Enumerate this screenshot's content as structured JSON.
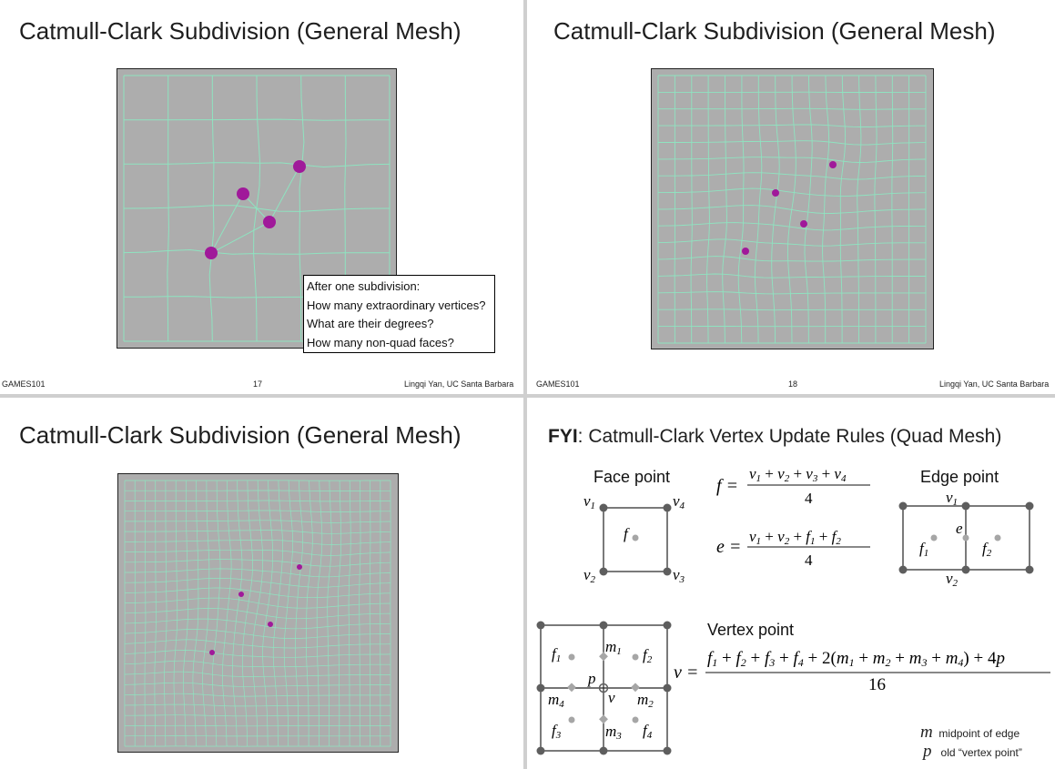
{
  "slides": [
    {
      "title": "Catmull-Clark Subdivision (General Mesh)",
      "footer": {
        "left": "GAMES101",
        "center": "17",
        "right": "Lingqi Yan, UC Santa Barbara"
      },
      "question_box": [
        "After one subdivision:",
        "How many extraordinary vertices?",
        "What are their degrees?",
        "How many non-quad faces?"
      ]
    },
    {
      "title": "Catmull-Clark Subdivision (General Mesh)",
      "footer": {
        "left": "GAMES101",
        "center": "18",
        "right": "Lingqi Yan, UC Santa Barbara"
      }
    },
    {
      "title": "Catmull-Clark Subdivision (General Mesh)"
    },
    {
      "title_bold": "FYI",
      "title_rest": ": Catmull-Clark Vertex Update Rules (Quad Mesh)",
      "face_point_label": "Face point",
      "edge_point_label": "Edge point",
      "vertex_point_label": "Vertex point",
      "face_formula": {
        "lhs": "f =",
        "num": "v1 + v2 + v3 + v4",
        "den": "4"
      },
      "edge_formula": {
        "lhs": "e =",
        "num": "v1 + v2 + f1 + f2",
        "den": "4"
      },
      "vertex_formula": {
        "lhs": "v =",
        "num": "f1 + f2 + f3 + f4 + 2(m1 + m2 + m3 + m4) + 4p",
        "den": "16"
      },
      "legend": [
        {
          "symbol": "m",
          "text": "midpoint of edge"
        },
        {
          "symbol": "p",
          "text": "old “vertex point”"
        }
      ]
    }
  ],
  "colors": {
    "mesh_bg": "#adadad",
    "mesh_line": "#8fe3c0",
    "vertex": "#a0199a",
    "diagram_point": "#5e5e5e",
    "diagram_light": "#a6a6a6"
  }
}
